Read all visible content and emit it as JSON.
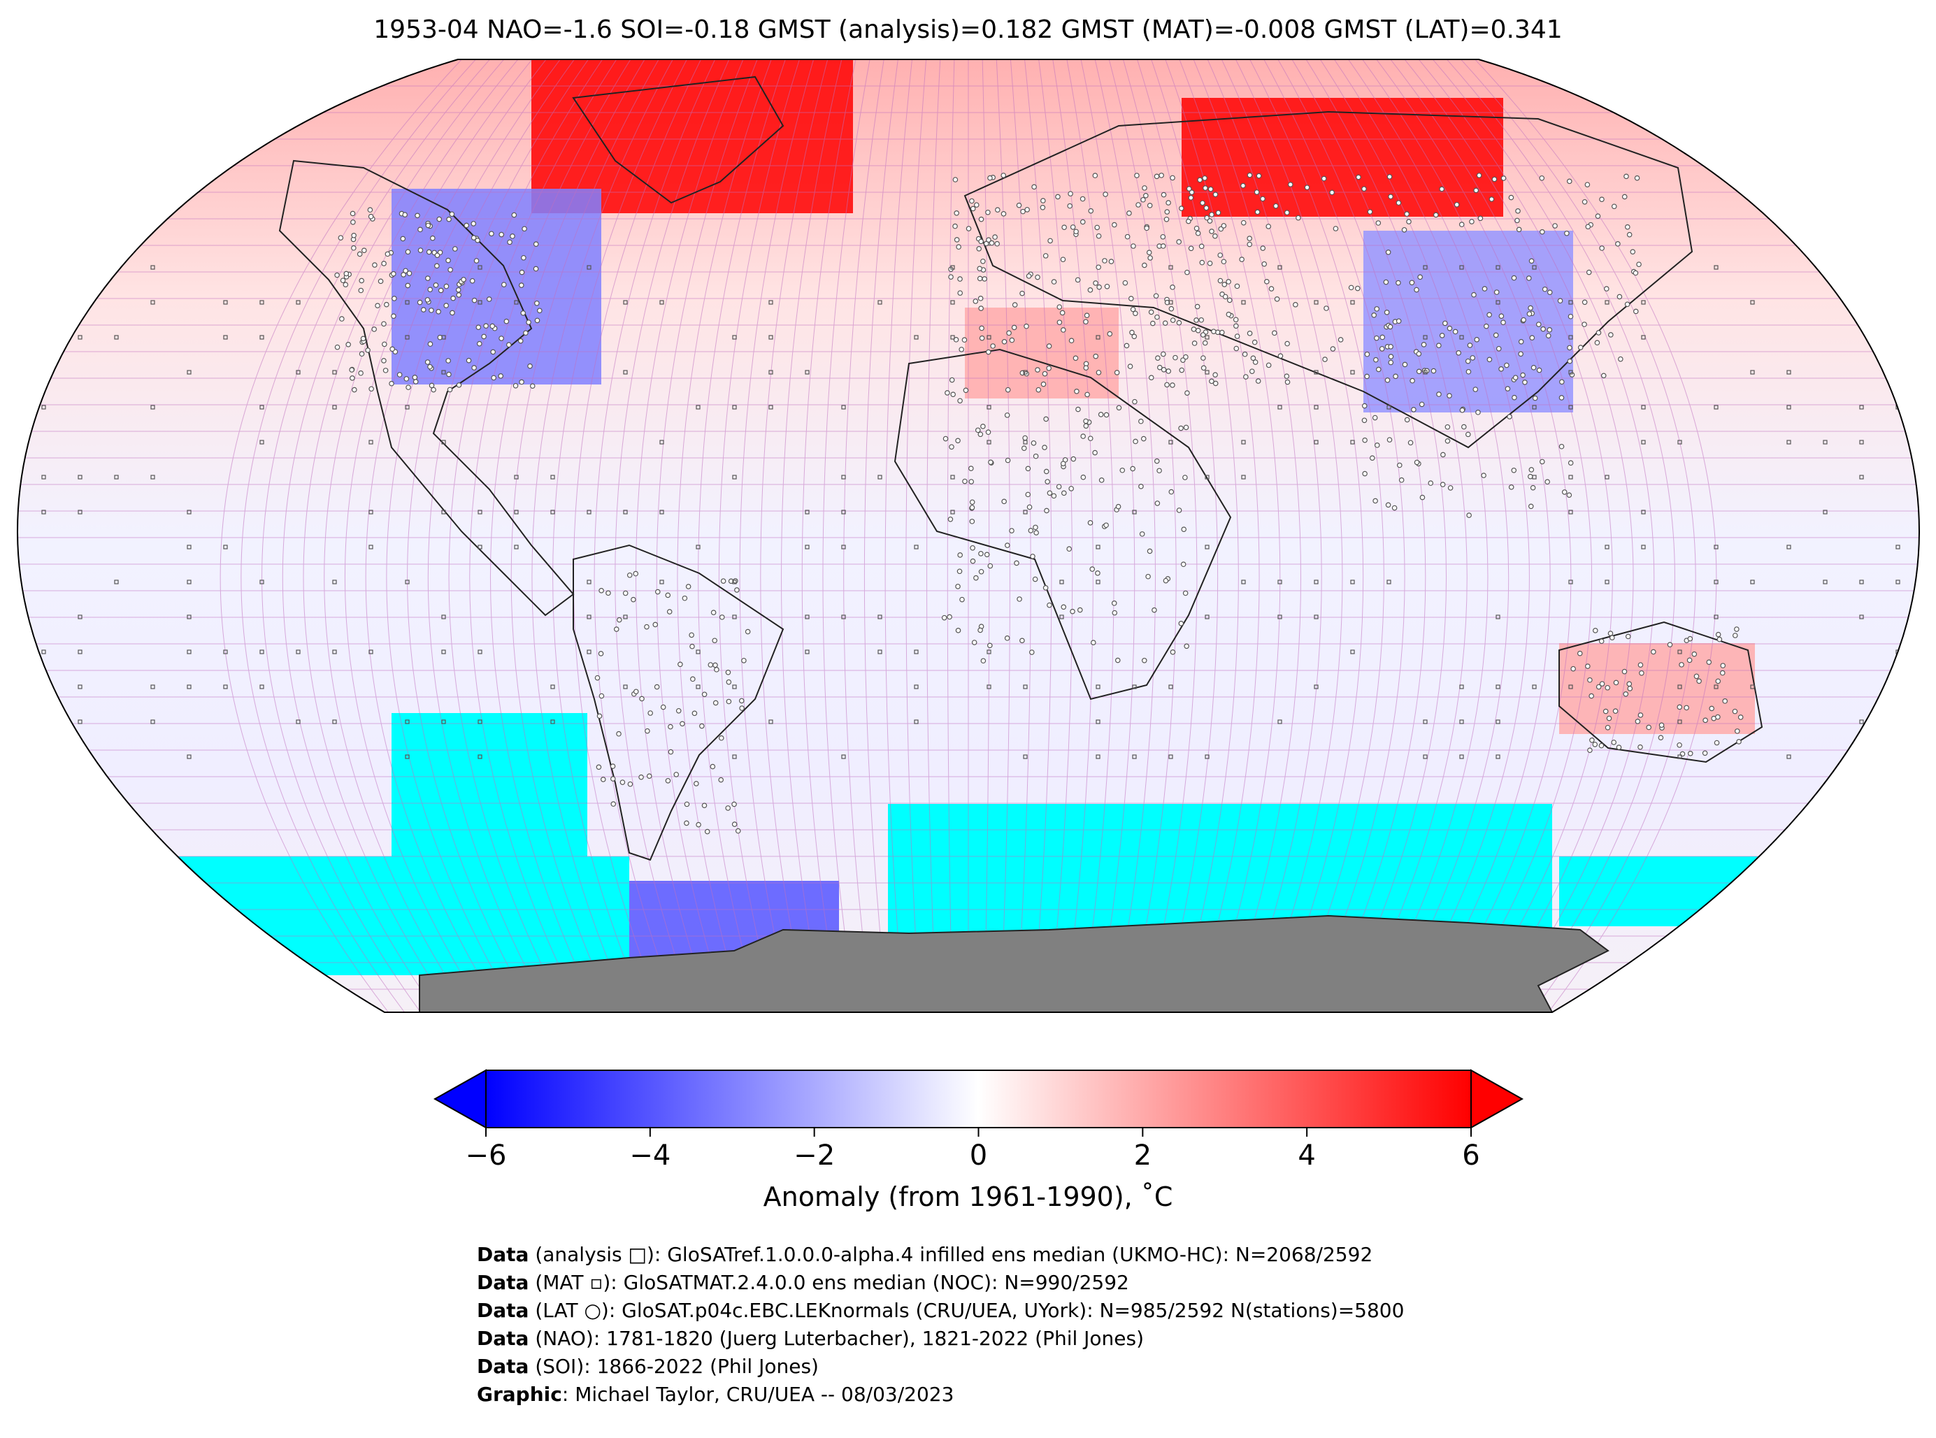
{
  "title": "1953-04 NAO=-1.6 SOI=-0.18 GMST (analysis)=0.182 GMST (MAT)=-0.008 GMST (LAT)=0.341",
  "colorbar": {
    "label": "Anomaly (from 1961-1990), ˚C",
    "ticks": [
      "−6",
      "−4",
      "−2",
      "0",
      "2",
      "4",
      "6"
    ],
    "tick_values": [
      -6,
      -4,
      -2,
      0,
      2,
      4,
      6
    ],
    "min": -6,
    "max": 6,
    "extend": "both",
    "colormap": [
      "#0000ff",
      "#ffffff",
      "#ff0000"
    ]
  },
  "map": {
    "projection": "Robinson",
    "colors": {
      "missing_ocean": "#00ffff",
      "antarctica": "#808080",
      "grid": "#c070c0",
      "warm": "#ff0000",
      "cold": "#0000ff"
    },
    "regions": [
      {
        "name": "Greenland / Arctic Canada",
        "anomaly": 6
      },
      {
        "name": "Northern Siberia",
        "anomaly": 6
      },
      {
        "name": "North America interior",
        "anomaly": -3
      },
      {
        "name": "Central / East Asia",
        "anomaly": -2.5
      },
      {
        "name": "North Africa / Sahara",
        "anomaly": 2
      },
      {
        "name": "Australia",
        "anomaly": 2
      },
      {
        "name": "Antarctic Peninsula",
        "anomaly": -4
      }
    ]
  },
  "credits": [
    {
      "label": "Data",
      "text": " (analysis □): GloSATref.1.0.0.0-alpha.4 infilled ens median (UKMO-HC): N=2068/2592"
    },
    {
      "label": "Data",
      "text": " (MAT ▫): GloSATMAT.2.4.0.0 ens median (NOC): N=990/2592"
    },
    {
      "label": "Data",
      "text": " (LAT ○): GloSAT.p04c.EBC.LEKnormals (CRU/UEA, UYork): N=985/2592 N(stations)=5800"
    },
    {
      "label": "Data",
      "text": " (NAO): 1781-1820 (Juerg Luterbacher), 1821-2022 (Phil Jones)"
    },
    {
      "label": "Data",
      "text": " (SOI): 1866-2022 (Phil Jones)"
    },
    {
      "label": "Graphic",
      "text": ": Michael Taylor, CRU/UEA -- 08/03/2023"
    }
  ]
}
